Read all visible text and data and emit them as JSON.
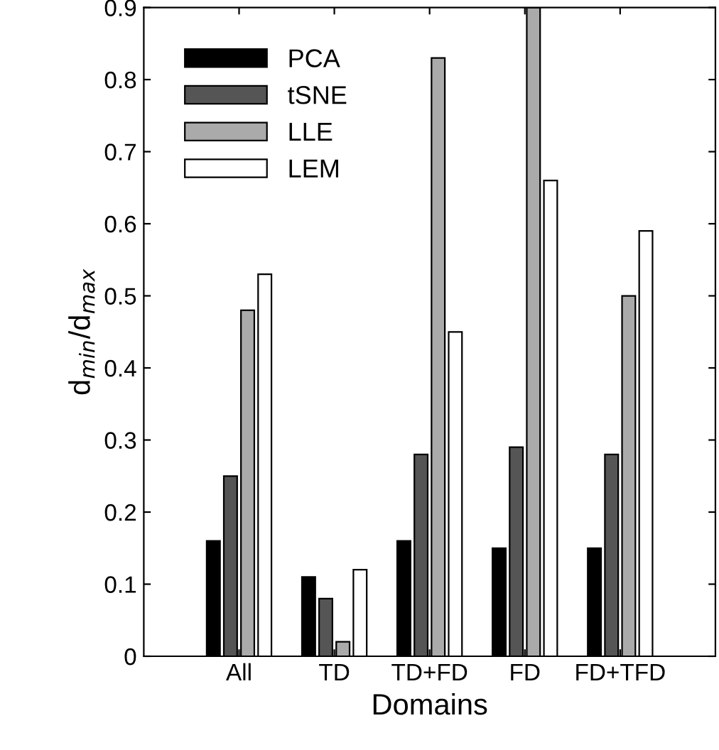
{
  "chart_data": {
    "type": "bar",
    "xlabel": "Domains",
    "ylabel": "d$_{min}$/d$_{max}$",
    "categories": [
      "All",
      "TD",
      "TD+FD",
      "FD",
      "FD+TFD"
    ],
    "series": [
      {
        "name": "PCA",
        "color": "#000000",
        "values": [
          0.16,
          0.11,
          0.16,
          0.15,
          0.15
        ]
      },
      {
        "name": "tSNE",
        "color": "#555555",
        "values": [
          0.25,
          0.08,
          0.28,
          0.29,
          0.28
        ]
      },
      {
        "name": "LLE",
        "color": "#aaaaaa",
        "values": [
          0.48,
          0.02,
          0.83,
          0.9,
          0.5
        ]
      },
      {
        "name": "LEM",
        "color": "#ffffff",
        "values": [
          0.53,
          0.12,
          0.45,
          0.66,
          0.59
        ]
      }
    ],
    "ylim": [
      0,
      0.9
    ],
    "yticks": [
      0,
      0.1,
      0.2,
      0.3,
      0.4,
      0.5,
      0.6,
      0.7,
      0.8,
      0.9
    ],
    "legend": "top left",
    "grid": false
  }
}
